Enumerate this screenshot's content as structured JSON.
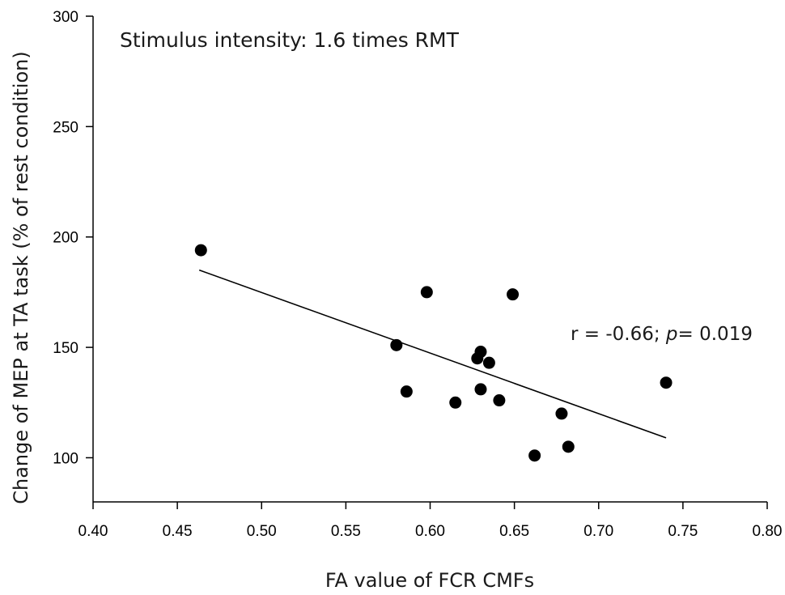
{
  "chart_data": {
    "type": "scatter",
    "title": "",
    "annotation": "Stimulus intensity: 1.6 times RMT",
    "stat": {
      "r_text": "r = -0.66; ",
      "p_symbol": "p",
      "p_text": "= 0.019"
    },
    "xlabel": "FA value of FCR CMFs",
    "ylabel": "Change of MEP at TA task (% of rest condition)",
    "xlim": [
      0.4,
      0.8
    ],
    "ylim": [
      80,
      300
    ],
    "x_ticks": [
      "0.40",
      "0.45",
      "0.50",
      "0.55",
      "0.60",
      "0.65",
      "0.70",
      "0.75",
      "0.80"
    ],
    "y_ticks": [
      "100",
      "150",
      "200",
      "250",
      "300"
    ],
    "grid": false,
    "points": [
      {
        "x": 0.464,
        "y": 194
      },
      {
        "x": 0.58,
        "y": 151
      },
      {
        "x": 0.586,
        "y": 130
      },
      {
        "x": 0.598,
        "y": 175
      },
      {
        "x": 0.615,
        "y": 125
      },
      {
        "x": 0.628,
        "y": 145
      },
      {
        "x": 0.63,
        "y": 148
      },
      {
        "x": 0.63,
        "y": 131
      },
      {
        "x": 0.635,
        "y": 143
      },
      {
        "x": 0.641,
        "y": 126
      },
      {
        "x": 0.649,
        "y": 174
      },
      {
        "x": 0.662,
        "y": 101
      },
      {
        "x": 0.678,
        "y": 120
      },
      {
        "x": 0.682,
        "y": 105
      },
      {
        "x": 0.74,
        "y": 134
      }
    ],
    "trendline": [
      {
        "x": 0.463,
        "y": 185
      },
      {
        "x": 0.74,
        "y": 109
      }
    ],
    "colors": {
      "points": "#000000",
      "axis": "#000000",
      "line": "#000000"
    }
  }
}
